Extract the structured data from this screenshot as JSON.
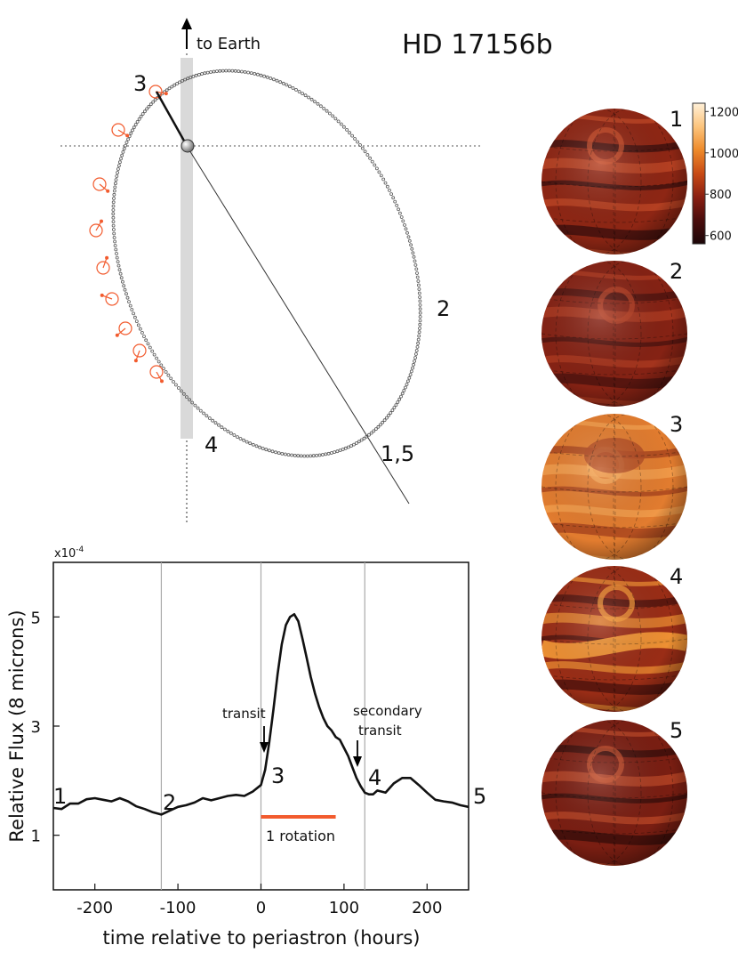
{
  "title": "HD 17156b",
  "orbit": {
    "earth_label": "to Earth",
    "position_labels": [
      "3",
      "2",
      "4",
      "1,5"
    ]
  },
  "globes": {
    "labels": [
      "1",
      "2",
      "3",
      "4",
      "5"
    ],
    "colorbar": {
      "ticks": [
        "1200",
        "1000",
        "800",
        "600"
      ],
      "range": [
        560,
        1240
      ],
      "colors": [
        "#1c0608",
        "#4a0d0c",
        "#8a1f12",
        "#c84a14",
        "#ee8a2a",
        "#fcc47c",
        "#fff0d8"
      ]
    }
  },
  "chart_data": {
    "type": "line",
    "ylabel": "Relative Flux (8 microns)",
    "xlabel": "time relative to periastron (hours)",
    "y_scale_label": "x10",
    "y_scale_exp": "-4",
    "xlim": [
      -250,
      250
    ],
    "ylim": [
      0,
      6
    ],
    "xticks": [
      "-200",
      "-100",
      "0",
      "100",
      "200"
    ],
    "yticks": [
      "1",
      "3",
      "5"
    ],
    "vlines": [
      -120,
      0,
      125
    ],
    "curve_labels": [
      "1",
      "2",
      "3",
      "4",
      "5"
    ],
    "annotations": {
      "transit": "transit",
      "secondary_line1": "secondary",
      "secondary_line2": "transit",
      "rotation": "1 rotation"
    },
    "rotation_span": [
      0,
      90
    ],
    "line_color": "#111111",
    "rotation_color": "#f25b2e",
    "series": [
      {
        "x": [
          -250,
          -240,
          -230,
          -220,
          -210,
          -200,
          -190,
          -180,
          -170,
          -160,
          -150,
          -140,
          -130,
          -120,
          -110,
          -100,
          -90,
          -80,
          -70,
          -60,
          -50,
          -40,
          -30,
          -20,
          -10,
          0,
          5,
          10,
          15,
          20,
          25,
          30,
          35,
          40,
          45,
          50,
          55,
          60,
          65,
          70,
          75,
          80,
          85,
          90,
          95,
          100,
          105,
          110,
          115,
          120,
          125,
          130,
          135,
          140,
          150,
          160,
          170,
          180,
          190,
          200,
          210,
          220,
          230,
          240,
          250
        ],
        "y": [
          1.5,
          1.48,
          1.58,
          1.58,
          1.66,
          1.68,
          1.65,
          1.62,
          1.68,
          1.62,
          1.53,
          1.48,
          1.42,
          1.38,
          1.45,
          1.52,
          1.55,
          1.6,
          1.68,
          1.64,
          1.68,
          1.72,
          1.74,
          1.72,
          1.8,
          1.92,
          2.2,
          2.7,
          3.3,
          3.95,
          4.5,
          4.85,
          5.0,
          5.05,
          4.92,
          4.6,
          4.25,
          3.9,
          3.6,
          3.35,
          3.15,
          3.0,
          2.92,
          2.8,
          2.75,
          2.6,
          2.45,
          2.25,
          2.05,
          1.9,
          1.78,
          1.75,
          1.75,
          1.82,
          1.78,
          1.95,
          2.05,
          2.05,
          1.92,
          1.78,
          1.65,
          1.62,
          1.6,
          1.55,
          1.52
        ]
      }
    ]
  }
}
